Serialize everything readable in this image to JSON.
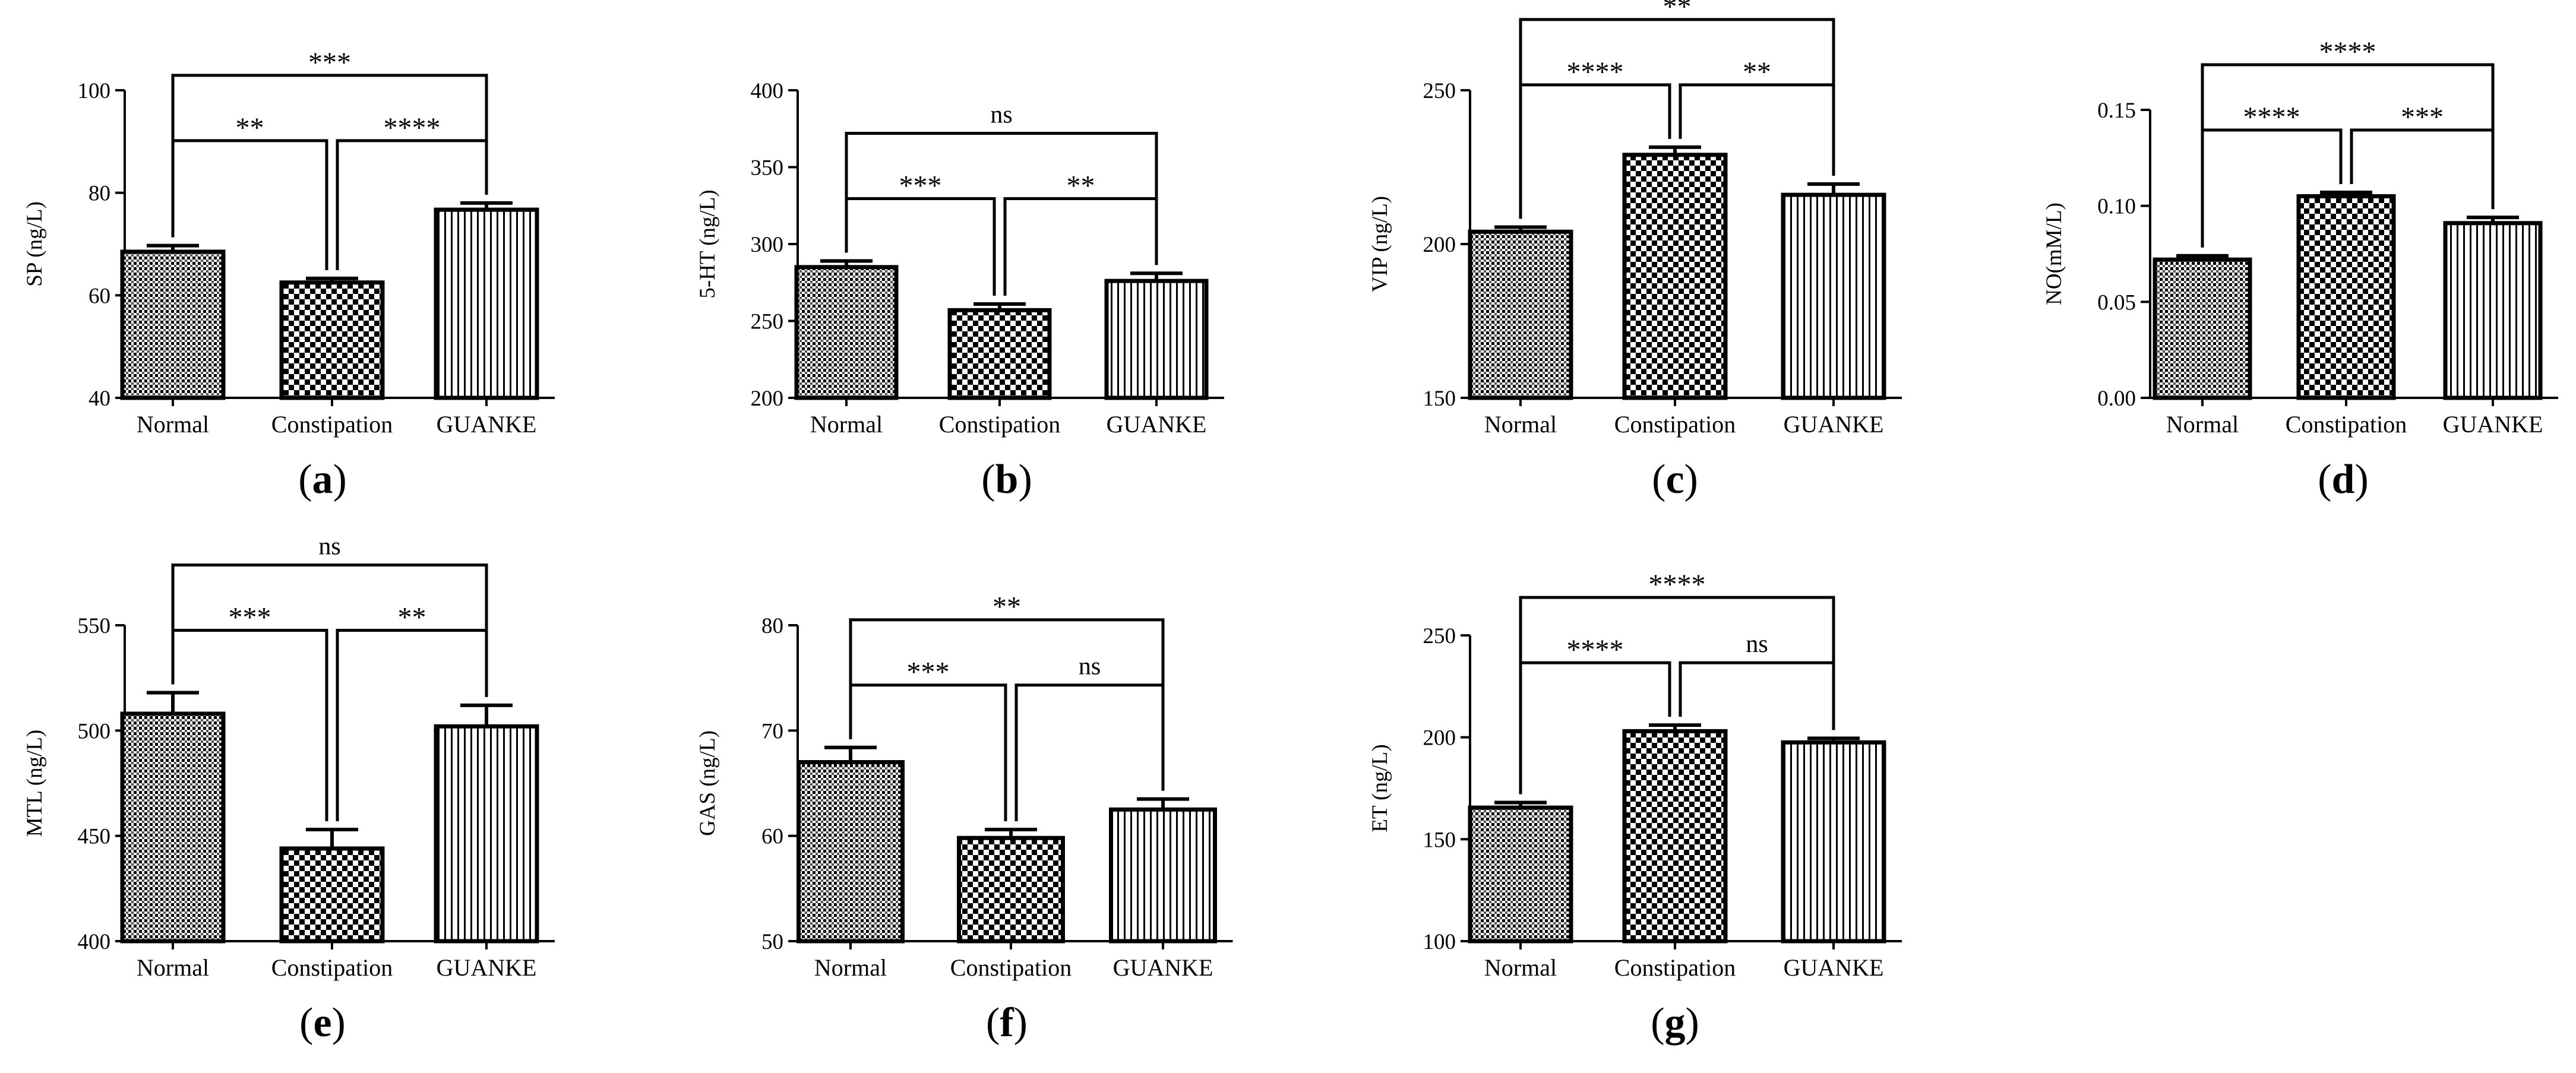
{
  "chart_data": [
    {
      "type": "bar",
      "panel_label": "a",
      "title": "",
      "xlabel": "",
      "ylabel": "SP (ng/L)",
      "categories": [
        "Normal",
        "Constipation",
        "GUANKE"
      ],
      "values": [
        68.5,
        62.5,
        76.7
      ],
      "errors": [
        1.2,
        0.8,
        1.3
      ],
      "ylim": [
        40,
        100
      ],
      "yticks": [
        40,
        60,
        80,
        100
      ],
      "tick_labels": [
        "40",
        "60",
        "80",
        "100"
      ],
      "patterns": [
        "grid",
        "checker",
        "vlines"
      ],
      "comparisons": [
        {
          "from": 0,
          "to": 1,
          "label": "**"
        },
        {
          "from": 1,
          "to": 2,
          "label": "****"
        },
        {
          "from": 0,
          "to": 2,
          "label": "***"
        }
      ]
    },
    {
      "type": "bar",
      "panel_label": "b",
      "title": "",
      "xlabel": "",
      "ylabel": "5-HT  (ng/L)",
      "categories": [
        "Normal",
        "Constipation",
        "GUANKE"
      ],
      "values": [
        285,
        257,
        276
      ],
      "errors": [
        4,
        4,
        5
      ],
      "ylim": [
        200,
        400
      ],
      "yticks": [
        200,
        250,
        300,
        350,
        400
      ],
      "tick_labels": [
        "200",
        "250",
        "300",
        "350",
        "400"
      ],
      "patterns": [
        "grid",
        "checker",
        "vlines"
      ],
      "comparisons": [
        {
          "from": 0,
          "to": 1,
          "label": "***"
        },
        {
          "from": 1,
          "to": 2,
          "label": "**"
        },
        {
          "from": 0,
          "to": 2,
          "label": "ns"
        }
      ]
    },
    {
      "type": "bar",
      "panel_label": "c",
      "title": "",
      "xlabel": "",
      "ylabel": "VIP (ng/L)",
      "categories": [
        "Normal",
        "Constipation",
        "GUANKE"
      ],
      "values": [
        204,
        229,
        216
      ],
      "errors": [
        1.5,
        2.5,
        3.5
      ],
      "ylim": [
        150,
        250
      ],
      "yticks": [
        150,
        200,
        250
      ],
      "tick_labels": [
        "150",
        "200",
        "250"
      ],
      "patterns": [
        "grid",
        "checker",
        "vlines"
      ],
      "comparisons": [
        {
          "from": 0,
          "to": 1,
          "label": "****"
        },
        {
          "from": 1,
          "to": 2,
          "label": "**"
        },
        {
          "from": 0,
          "to": 2,
          "label": "**"
        }
      ]
    },
    {
      "type": "bar",
      "panel_label": "d",
      "title": "",
      "xlabel": "",
      "ylabel": "NO(mM/L)",
      "categories": [
        "Normal",
        "Constipation",
        "GUANKE"
      ],
      "values": [
        0.072,
        0.105,
        0.091
      ],
      "errors": [
        0.002,
        0.002,
        0.003
      ],
      "ylim": [
        0,
        0.15
      ],
      "yticks": [
        0,
        0.05,
        0.1,
        0.15
      ],
      "tick_labels": [
        "0.00",
        "0.05",
        "0.10",
        "0.15"
      ],
      "patterns": [
        "grid",
        "checker",
        "vlines"
      ],
      "comparisons": [
        {
          "from": 0,
          "to": 1,
          "label": "****"
        },
        {
          "from": 1,
          "to": 2,
          "label": "***"
        },
        {
          "from": 0,
          "to": 2,
          "label": "****"
        }
      ]
    },
    {
      "type": "bar",
      "panel_label": "e",
      "title": "",
      "xlabel": "",
      "ylabel": "MTL (ng/L)",
      "categories": [
        "Normal",
        "Constipation",
        "GUANKE"
      ],
      "values": [
        508,
        444,
        502
      ],
      "errors": [
        10,
        9,
        10
      ],
      "ylim": [
        400,
        550
      ],
      "yticks": [
        400,
        450,
        500,
        550
      ],
      "tick_labels": [
        "400",
        "450",
        "500",
        "550"
      ],
      "patterns": [
        "grid",
        "checker",
        "vlines"
      ],
      "comparisons": [
        {
          "from": 0,
          "to": 1,
          "label": "***"
        },
        {
          "from": 1,
          "to": 2,
          "label": "**"
        },
        {
          "from": 0,
          "to": 2,
          "label": "ns"
        }
      ]
    },
    {
      "type": "bar",
      "panel_label": "f",
      "title": "",
      "xlabel": "",
      "ylabel": "GAS (ng/L)",
      "categories": [
        "Normal",
        "Constipation",
        "GUANKE"
      ],
      "values": [
        67.0,
        59.8,
        62.5
      ],
      "errors": [
        1.4,
        0.8,
        1.0
      ],
      "ylim": [
        50,
        80
      ],
      "yticks": [
        50,
        60,
        70,
        80
      ],
      "tick_labels": [
        "50",
        "60",
        "70",
        "80"
      ],
      "patterns": [
        "grid",
        "checker",
        "vlines"
      ],
      "comparisons": [
        {
          "from": 0,
          "to": 1,
          "label": "***"
        },
        {
          "from": 1,
          "to": 2,
          "label": "ns"
        },
        {
          "from": 0,
          "to": 2,
          "label": "**"
        }
      ]
    },
    {
      "type": "bar",
      "panel_label": "g",
      "title": "",
      "xlabel": "",
      "ylabel": "ET (ng/L)",
      "categories": [
        "Normal",
        "Constipation",
        "GUANKE"
      ],
      "values": [
        165.5,
        203,
        197.5
      ],
      "errors": [
        2.5,
        3,
        2
      ],
      "ylim": [
        100,
        250
      ],
      "yticks": [
        100,
        150,
        200,
        250
      ],
      "tick_labels": [
        "100",
        "150",
        "200",
        "250"
      ],
      "patterns": [
        "grid",
        "checker",
        "vlines"
      ],
      "comparisons": [
        {
          "from": 0,
          "to": 1,
          "label": "****"
        },
        {
          "from": 1,
          "to": 2,
          "label": "ns"
        },
        {
          "from": 0,
          "to": 2,
          "label": "****"
        }
      ]
    }
  ]
}
